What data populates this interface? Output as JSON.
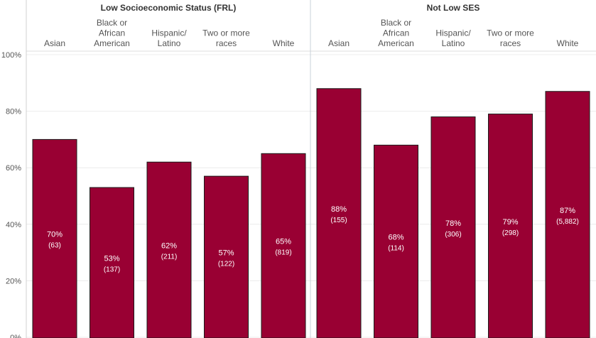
{
  "chart_data": {
    "type": "bar",
    "ylim": [
      0,
      100
    ],
    "yticks": [
      "0%",
      "20%",
      "40%",
      "60%",
      "80%",
      "100%"
    ],
    "grid": true,
    "bar_color": "#990033",
    "bar_border_color": "#1a1a1a",
    "panels": [
      {
        "title": "Low Socioeconomic Status (FRL)",
        "categories": [
          [
            "Asian"
          ],
          [
            "Black or",
            "African",
            "American"
          ],
          [
            "Hispanic/",
            "Latino"
          ],
          [
            "Two or more",
            "races"
          ],
          [
            "White"
          ]
        ],
        "values": [
          70,
          53,
          62,
          57,
          65
        ],
        "pct_labels": [
          "70%",
          "53%",
          "62%",
          "57%",
          "65%"
        ],
        "n_labels": [
          "(63)",
          "(137)",
          "(211)",
          "(122)",
          "(819)"
        ]
      },
      {
        "title": "Not Low SES",
        "categories": [
          [
            "Asian"
          ],
          [
            "Black or",
            "African",
            "American"
          ],
          [
            "Hispanic/",
            "Latino"
          ],
          [
            "Two or more",
            "races"
          ],
          [
            "White"
          ]
        ],
        "values": [
          88,
          68,
          78,
          79,
          87
        ],
        "pct_labels": [
          "88%",
          "68%",
          "78%",
          "79%",
          "87%"
        ],
        "n_labels": [
          "(155)",
          "(114)",
          "(306)",
          "(298)",
          "(5,882)"
        ]
      }
    ]
  }
}
